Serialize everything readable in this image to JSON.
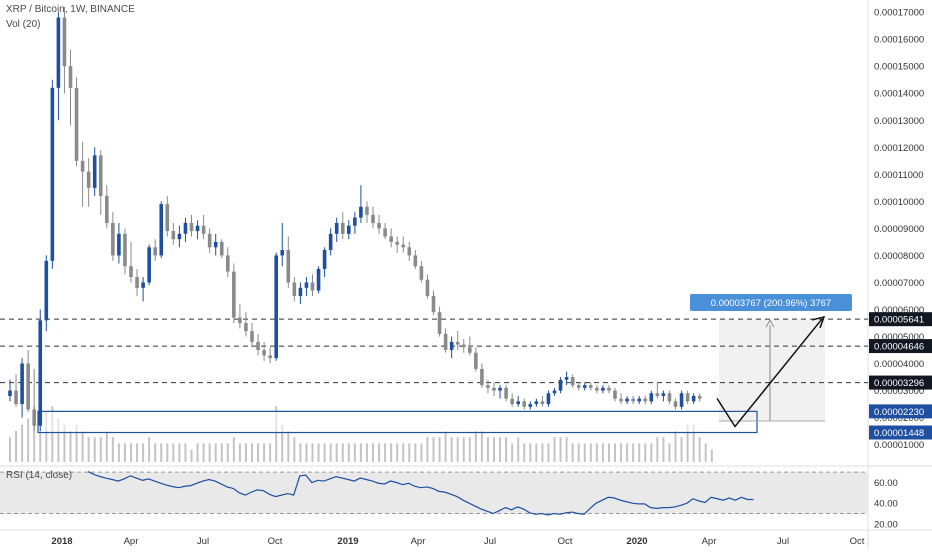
{
  "header": {
    "title": "XRP / Bitcoin, 1W, BINANCE",
    "volume_label": "Vol (20)"
  },
  "colors": {
    "up": "#1e4fa0",
    "down": "#8a8a8a",
    "volume": "#c4c4c4",
    "rsi_line": "#1e4fa0",
    "rsi_band": "#e9e9e9",
    "support_box": "#1e4fa0",
    "badge_dark": "#131722",
    "badge_blue": "#1e4fa0",
    "measure_label": "#4a90d9",
    "arrow": "#111111"
  },
  "chart_data": [
    {
      "type": "candlestick",
      "title": "XRP / Bitcoin, 1W, BINANCE",
      "x_axis_labels": [
        "2018",
        "Apr",
        "Jul",
        "Oct",
        "2019",
        "Apr",
        "Jul",
        "Oct",
        "2020",
        "Apr",
        "Jul",
        "Oct"
      ],
      "x_axis_bold": [
        "2018",
        "2019",
        "2020"
      ],
      "y_axis_ticks": [
        "0.00017000",
        "0.00016000",
        "0.00015000",
        "0.00014000",
        "0.00013000",
        "0.00012000",
        "0.00011000",
        "0.00010000",
        "0.00009000",
        "0.00008000",
        "0.00007000",
        "0.00006000",
        "0.00005000",
        "0.00004000",
        "0.00003000",
        "0.00002000",
        "0.00001000"
      ],
      "ylim": [
        3.2e-06,
        0.0001745
      ],
      "scale": "linear",
      "ohlc": [
        [
          2.8e-05,
          3.4e-05,
          2.6e-05,
          3e-05
        ],
        [
          3e-05,
          3.6e-05,
          2.4e-05,
          2.5e-05
        ],
        [
          2.5e-05,
          4.2e-05,
          2e-05,
          4e-05
        ],
        [
          4e-05,
          4.5e-05,
          2.2e-05,
          2.3e-05
        ],
        [
          2.3e-05,
          3.8e-05,
          1.5e-05,
          1.7e-05
        ],
        [
          1.7e-05,
          6e-05,
          1.5e-05,
          5.6e-05
        ],
        [
          5.6e-05,
          8e-05,
          5.2e-05,
          7.8e-05
        ],
        [
          7.8e-05,
          0.000145,
          7.5e-05,
          0.000142
        ],
        [
          0.000142,
          0.00017,
          0.00013,
          0.000168
        ],
        [
          0.000168,
          0.000172,
          0.00014,
          0.00015
        ],
        [
          0.00015,
          0.000156,
          0.000128,
          0.000142
        ],
        [
          0.000142,
          0.000146,
          0.000113,
          0.000115
        ],
        [
          0.000115,
          0.000122,
          9.8e-05,
          0.000111
        ],
        [
          0.000111,
          0.000116,
          9.8e-05,
          0.000105
        ],
        [
          0.000105,
          0.00012,
          0.000102,
          0.000117
        ],
        [
          0.000117,
          0.000119,
          9.5e-05,
          0.000102
        ],
        [
          0.000102,
          0.000106,
          9e-05,
          9.2e-05
        ],
        [
          9.2e-05,
          9.6e-05,
          7.8e-05,
          8e-05
        ],
        [
          8e-05,
          9.2e-05,
          7.7e-05,
          8.8e-05
        ],
        [
          8.8e-05,
          9e-05,
          7.3e-05,
          7.6e-05
        ],
        [
          7.6e-05,
          8.5e-05,
          7e-05,
          7.2e-05
        ],
        [
          7.2e-05,
          7.5e-05,
          6.5e-05,
          6.8e-05
        ],
        [
          6.8e-05,
          7.2e-05,
          6.3e-05,
          7e-05
        ],
        [
          7e-05,
          8.4e-05,
          6.9e-05,
          8.3e-05
        ],
        [
          8.3e-05,
          8.6e-05,
          7.8e-05,
          8e-05
        ],
        [
          8e-05,
          0.0001,
          7.9e-05,
          9.9e-05
        ],
        [
          9.9e-05,
          0.000102,
          8.7e-05,
          8.9e-05
        ],
        [
          8.9e-05,
          9.2e-05,
          8.4e-05,
          8.6e-05
        ],
        [
          8.6e-05,
          9.1e-05,
          8.3e-05,
          8.8e-05
        ],
        [
          8.8e-05,
          9.4e-05,
          8.5e-05,
          9.2e-05
        ],
        [
          9.2e-05,
          9.5e-05,
          8.7e-05,
          8.9e-05
        ],
        [
          8.9e-05,
          9.3e-05,
          8.6e-05,
          9.1e-05
        ],
        [
          9.1e-05,
          9.5e-05,
          8.6e-05,
          8.8e-05
        ],
        [
          8.8e-05,
          9e-05,
          8.1e-05,
          8.3e-05
        ],
        [
          8.3e-05,
          8.8e-05,
          8e-05,
          8.5e-05
        ],
        [
          8.5e-05,
          8.6e-05,
          7.9e-05,
          8e-05
        ],
        [
          8e-05,
          8.3e-05,
          7.2e-05,
          7.4e-05
        ],
        [
          7.4e-05,
          7.7e-05,
          5.5e-05,
          5.7e-05
        ],
        [
          5.7e-05,
          6.2e-05,
          5.3e-05,
          5.5e-05
        ],
        [
          5.5e-05,
          5.9e-05,
          5e-05,
          5.2e-05
        ],
        [
          5.2e-05,
          5.5e-05,
          4.6e-05,
          4.8e-05
        ],
        [
          4.8e-05,
          5.1e-05,
          4.3e-05,
          4.5e-05
        ],
        [
          4.5e-05,
          4.8e-05,
          4.1e-05,
          4.3e-05
        ],
        [
          4.3e-05,
          4.6e-05,
          4e-05,
          4.2e-05
        ],
        [
          4.2e-05,
          8.1e-05,
          4.1e-05,
          8e-05
        ],
        [
          8e-05,
          9.2e-05,
          7.6e-05,
          8.2e-05
        ],
        [
          8.2e-05,
          8.7e-05,
          6.8e-05,
          7e-05
        ],
        [
          7e-05,
          7.2e-05,
          6.3e-05,
          6.5e-05
        ],
        [
          6.5e-05,
          7e-05,
          6.2e-05,
          6.8e-05
        ],
        [
          6.8e-05,
          7.2e-05,
          6.5e-05,
          7e-05
        ],
        [
          7e-05,
          7.3e-05,
          6.5e-05,
          6.7e-05
        ],
        [
          6.7e-05,
          7.6e-05,
          6.6e-05,
          7.5e-05
        ],
        [
          7.5e-05,
          8.3e-05,
          7.2e-05,
          8.2e-05
        ],
        [
          8.2e-05,
          9e-05,
          8e-05,
          8.8e-05
        ],
        [
          8.8e-05,
          9.4e-05,
          8.5e-05,
          9.2e-05
        ],
        [
          9.2e-05,
          9.6e-05,
          8.6e-05,
          8.8e-05
        ],
        [
          8.8e-05,
          9.3e-05,
          8.6e-05,
          9.1e-05
        ],
        [
          9.1e-05,
          9.6e-05,
          8.8e-05,
          9.4e-05
        ],
        [
          9.4e-05,
          0.000106,
          9.2e-05,
          9.8e-05
        ],
        [
          9.8e-05,
          0.0001,
          9.2e-05,
          9.5e-05
        ],
        [
          9.5e-05,
          9.8e-05,
          9e-05,
          9.2e-05
        ],
        [
          9.2e-05,
          9.5e-05,
          8.8e-05,
          9e-05
        ],
        [
          9e-05,
          9.2e-05,
          8.6e-05,
          8.7e-05
        ],
        [
          8.7e-05,
          9e-05,
          8.3e-05,
          8.5e-05
        ],
        [
          8.5e-05,
          8.7e-05,
          8.1e-05,
          8.4e-05
        ],
        [
          8.4e-05,
          8.7e-05,
          8.1e-05,
          8.3e-05
        ],
        [
          8.3e-05,
          8.5e-05,
          7.8e-05,
          8e-05
        ],
        [
          8e-05,
          8.2e-05,
          7.5e-05,
          7.6e-05
        ],
        [
          7.6e-05,
          7.8e-05,
          7e-05,
          7.1e-05
        ],
        [
          7.1e-05,
          7.3e-05,
          6.4e-05,
          6.5e-05
        ],
        [
          6.5e-05,
          6.7e-05,
          5.8e-05,
          5.9e-05
        ],
        [
          5.9e-05,
          6.1e-05,
          5e-05,
          5.1e-05
        ],
        [
          5.1e-05,
          5.3e-05,
          4.4e-05,
          4.5e-05
        ],
        [
          4.5e-05,
          5e-05,
          4.2e-05,
          4.8e-05
        ],
        [
          4.8e-05,
          5.2e-05,
          4.5e-05,
          4.7e-05
        ],
        [
          4.7e-05,
          4.9e-05,
          4.4e-05,
          4.6e-05
        ],
        [
          4.6e-05,
          5e-05,
          4.3e-05,
          4.4e-05
        ],
        [
          4.4e-05,
          4.6e-05,
          3.7e-05,
          3.8e-05
        ],
        [
          3.8e-05,
          4e-05,
          3.1e-05,
          3.2e-05
        ],
        [
          3.2e-05,
          3.4e-05,
          2.9e-05,
          3.1e-05
        ],
        [
          3.1e-05,
          3.3e-05,
          2.8e-05,
          3e-05
        ],
        [
          3e-05,
          3.2e-05,
          2.7e-05,
          3.1e-05
        ],
        [
          3.1e-05,
          3.2e-05,
          2.6e-05,
          2.7e-05
        ],
        [
          2.7e-05,
          2.9e-05,
          2.4e-05,
          2.5e-05
        ],
        [
          2.5e-05,
          2.8e-05,
          2.4e-05,
          2.6e-05
        ],
        [
          2.6e-05,
          2.7e-05,
          2.3e-05,
          2.4e-05
        ],
        [
          2.4e-05,
          2.6e-05,
          2.3e-05,
          2.5e-05
        ],
        [
          2.5e-05,
          2.7e-05,
          2.4e-05,
          2.6e-05
        ],
        [
          2.6e-05,
          2.8e-05,
          2.4e-05,
          2.5e-05
        ],
        [
          2.5e-05,
          3e-05,
          2.4e-05,
          2.9e-05
        ],
        [
          2.9e-05,
          3.1e-05,
          2.8e-05,
          3e-05
        ],
        [
          3e-05,
          3.5e-05,
          2.9e-05,
          3.4e-05
        ],
        [
          3.4e-05,
          3.7e-05,
          3.2e-05,
          3.5e-05
        ],
        [
          3.5e-05,
          3.6e-05,
          3.1e-05,
          3.2e-05
        ],
        [
          3.2e-05,
          3.3e-05,
          3e-05,
          3.1e-05
        ],
        [
          3.1e-05,
          3.3e-05,
          3e-05,
          3.2e-05
        ],
        [
          3.2e-05,
          3.3e-05,
          3e-05,
          3.1e-05
        ],
        [
          3.1e-05,
          3.2e-05,
          2.9e-05,
          3e-05
        ],
        [
          3e-05,
          3.2e-05,
          2.9e-05,
          3.1e-05
        ],
        [
          3.1e-05,
          3.2e-05,
          2.9e-05,
          3e-05
        ],
        [
          3e-05,
          3.1e-05,
          2.6e-05,
          2.7e-05
        ],
        [
          2.7e-05,
          2.9e-05,
          2.5e-05,
          2.6e-05
        ],
        [
          2.6e-05,
          2.8e-05,
          2.5e-05,
          2.7e-05
        ],
        [
          2.7e-05,
          2.8e-05,
          2.5e-05,
          2.6e-05
        ],
        [
          2.6e-05,
          2.8e-05,
          2.5e-05,
          2.7e-05
        ],
        [
          2.7e-05,
          2.8e-05,
          2.5e-05,
          2.6e-05
        ],
        [
          2.6e-05,
          3e-05,
          2.5e-05,
          2.9e-05
        ],
        [
          2.9e-05,
          3.3e-05,
          2.7e-05,
          2.8e-05
        ],
        [
          2.8e-05,
          3e-05,
          2.6e-05,
          2.9e-05
        ],
        [
          2.9e-05,
          3e-05,
          2.5e-05,
          2.6e-05
        ],
        [
          2.6e-05,
          2.7e-05,
          2.3e-05,
          2.4e-05
        ],
        [
          2.4e-05,
          3e-05,
          2.3e-05,
          2.9e-05
        ],
        [
          2.9e-05,
          3e-05,
          2.5e-05,
          2.6e-05
        ],
        [
          2.6e-05,
          2.9e-05,
          2.5e-05,
          2.8e-05
        ],
        [
          2.8e-05,
          2.9e-05,
          2.6e-05,
          2.7e-05
        ]
      ],
      "volume_relative": [
        0.4,
        0.5,
        0.6,
        0.7,
        0.9,
        1.0,
        0.8,
        0.9,
        0.7,
        0.6,
        0.5,
        0.6,
        0.5,
        0.4,
        0.4,
        0.4,
        0.5,
        0.4,
        0.3,
        0.3,
        0.3,
        0.3,
        0.3,
        0.4,
        0.3,
        0.3,
        0.3,
        0.3,
        0.3,
        0.3,
        0.2,
        0.3,
        0.3,
        0.3,
        0.3,
        0.3,
        0.3,
        0.4,
        0.3,
        0.3,
        0.3,
        0.3,
        0.3,
        0.3,
        0.9,
        0.6,
        0.5,
        0.4,
        0.3,
        0.3,
        0.3,
        0.3,
        0.3,
        0.3,
        0.3,
        0.3,
        0.3,
        0.3,
        0.3,
        0.3,
        0.3,
        0.3,
        0.3,
        0.3,
        0.3,
        0.3,
        0.3,
        0.3,
        0.3,
        0.4,
        0.4,
        0.4,
        0.5,
        0.4,
        0.4,
        0.4,
        0.4,
        0.5,
        0.5,
        0.4,
        0.4,
        0.4,
        0.4,
        0.3,
        0.4,
        0.3,
        0.3,
        0.3,
        0.3,
        0.3,
        0.4,
        0.4,
        0.4,
        0.3,
        0.3,
        0.3,
        0.3,
        0.3,
        0.3,
        0.3,
        0.3,
        0.3,
        0.3,
        0.3,
        0.3,
        0.3,
        0.3,
        0.4,
        0.4,
        0.3,
        0.5,
        0.4,
        0.6,
        0.6,
        0.4,
        0.3,
        0.2
      ],
      "horizontal_levels": [
        {
          "value": 5.641e-05,
          "label": "0.00005641",
          "style": "dark"
        },
        {
          "value": 4.646e-05,
          "label": "0.00004646",
          "style": "dark"
        },
        {
          "value": 3.296e-05,
          "label": "0.00003296",
          "style": "dark"
        },
        {
          "value": 2.23e-05,
          "label": "0.00002230",
          "style": "blue"
        },
        {
          "value": 1.448e-05,
          "label": "0.00001448",
          "style": "blue"
        }
      ],
      "support_zone": {
        "low": 1.448e-05,
        "high": 2.23e-05,
        "extends_to": "Apr 2020"
      },
      "measure": {
        "from": 1.874e-05,
        "to": 5.641e-05,
        "label": "0.00003767 (200.96%) 3767"
      },
      "projection_path": [
        2.71e-05,
        1.67e-05,
        5.65e-05
      ]
    },
    {
      "type": "line",
      "title": "RSI (14, close)",
      "y_axis_ticks": [
        "60.00",
        "40.00",
        "20.00"
      ],
      "ylim": [
        16,
        75
      ],
      "band": [
        30,
        70
      ],
      "values": [
        70.6,
        67.8,
        65.7,
        64.2,
        62.9,
        61.4,
        63.6,
        66.4,
        64.3,
        62.1,
        63.5,
        61.4,
        59.3,
        57.4,
        56.0,
        55.0,
        56.4,
        57.0,
        59.3,
        61.4,
        62.9,
        61.4,
        58.6,
        55.7,
        54.3,
        50.0,
        47.8,
        50.7,
        52.9,
        52.1,
        48.6,
        46.4,
        47.8,
        49.3,
        47.9,
        66.4,
        67.1,
        60.0,
        62.1,
        61.4,
        63.6,
        65.7,
        64.3,
        62.9,
        61.4,
        64.3,
        62.9,
        61.4,
        59.3,
        58.6,
        61.4,
        60.0,
        57.9,
        59.3,
        56.4,
        55.0,
        55.7,
        54.3,
        51.4,
        50.7,
        48.6,
        46.4,
        42.9,
        40.0,
        37.1,
        34.3,
        32.1,
        30.0,
        32.9,
        35.7,
        33.6,
        36.4,
        34.3,
        30.7,
        29.3,
        30.0,
        28.6,
        30.0,
        29.3,
        30.7,
        31.4,
        30.0,
        29.3,
        35.0,
        40.0,
        42.9,
        45.7,
        45.0,
        42.9,
        41.4,
        40.0,
        39.3,
        39.3,
        35.7,
        35.0,
        35.7,
        35.7,
        36.4,
        37.9,
        40.0,
        44.3,
        42.1,
        40.7,
        45.7,
        44.3,
        42.9,
        45.0,
        42.9,
        45.7,
        43.6,
        43.6
      ]
    }
  ]
}
